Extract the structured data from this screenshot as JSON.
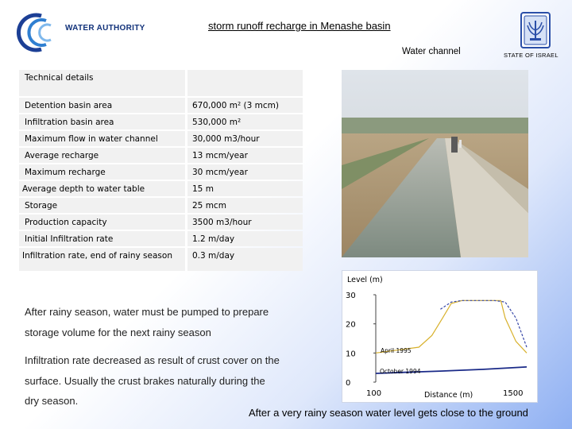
{
  "header": {
    "logo_text": "WATER AUTHORITY",
    "title": "storm runoff recharge in Menashe basin",
    "state_label": "STATE OF ISRAEL",
    "channel_label": "Water channel"
  },
  "table": {
    "header": [
      "Technical details",
      ""
    ],
    "rows": [
      [
        "Detention basin area",
        "670,000 m² (3 mcm)"
      ],
      [
        "Infiltration basin area",
        "530,000 m²"
      ],
      [
        "Maximum flow in water channel",
        "30,000 m3/hour"
      ],
      [
        "Average recharge",
        "13 mcm/year"
      ],
      [
        "Maximum recharge",
        "30 mcm/year"
      ],
      [
        "Average depth to water table",
        "15 m"
      ],
      [
        "Storage",
        "25 mcm"
      ],
      [
        "Production capacity",
        "3500 m3/hour"
      ],
      [
        "Initial Infiltration rate",
        "1.2 m/day"
      ],
      [
        "Infiltration rate, end of rainy season",
        "0.3 m/day"
      ]
    ]
  },
  "notes": [
    "After rainy season, water must be pumped to prepare",
    "storage volume for the next rainy season",
    "Infiltration rate decreased as result of crust cover on the",
    "surface. Usually the crust brakes naturally during the",
    "dry season."
  ],
  "chart_data": {
    "type": "line",
    "ylabel": "Level (m)",
    "xlabel": "Distance (m)",
    "yticks": [
      0,
      10,
      20,
      30
    ],
    "xticks": [
      100,
      1500
    ],
    "ylim": [
      0,
      30
    ],
    "xlim": [
      100,
      1500
    ],
    "series": [
      {
        "name": "April 1995",
        "x": [
          100,
          300,
          500,
          620,
          720,
          800,
          900,
          1000,
          1100,
          1200,
          1260,
          1300,
          1400,
          1500
        ],
        "y": [
          10,
          11,
          12,
          16,
          22,
          27,
          28,
          28,
          28,
          28,
          28,
          22,
          14,
          10
        ]
      },
      {
        "name": "October 1994",
        "x": [
          100,
          400,
          700,
          900,
          1100,
          1300,
          1500
        ],
        "y": [
          3,
          3.4,
          3.8,
          4.1,
          4.4,
          4.8,
          5.2
        ]
      },
      {
        "name": "",
        "x": [
          700,
          800,
          900,
          1000,
          1100,
          1200,
          1300,
          1400,
          1500
        ],
        "y": [
          25,
          27.5,
          28,
          28,
          28,
          28,
          27.5,
          22,
          12
        ]
      }
    ],
    "colors": [
      "#d8b12c",
      "#1a2a88",
      "#3848a8"
    ]
  },
  "bottom_caption": "After a very rainy season water level gets close to the ground"
}
